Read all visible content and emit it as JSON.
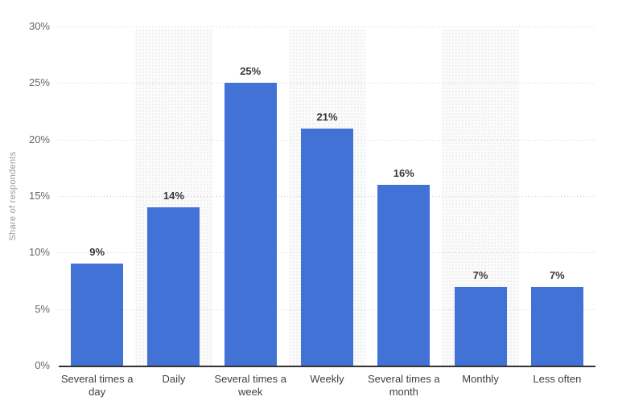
{
  "chart_data": {
    "type": "bar",
    "title": "",
    "xlabel": "",
    "ylabel": "Share of respondents",
    "categories": [
      "Several times a day",
      "Daily",
      "Several times a week",
      "Weekly",
      "Several times a month",
      "Monthly",
      "Less often"
    ],
    "values": [
      9,
      14,
      25,
      21,
      16,
      7,
      7
    ],
    "data_labels": [
      "9%",
      "14%",
      "25%",
      "21%",
      "16%",
      "7%",
      "7%"
    ],
    "y_ticks": [
      0,
      5,
      10,
      15,
      20,
      25,
      30
    ],
    "y_tick_labels": [
      "0%",
      "5%",
      "10%",
      "15%",
      "20%",
      "25%",
      "30%"
    ],
    "ylim": [
      0,
      30
    ],
    "grid": "horizontal-dotted",
    "legend": "none",
    "column_stripes": "alternating columns 2, 4, 6 shaded with light dotted texture"
  },
  "colors": {
    "background": "#ffffff",
    "bar": "#4272d6",
    "grid_line": "#cccccc",
    "axis_line": "#333333",
    "tick_text": "#666666",
    "category_text": "#404040",
    "data_label_text": "#383838",
    "y_axis_title_text": "#999999",
    "stripe_bg": "#fbfbfb",
    "stripe_dot": "#ededed"
  }
}
